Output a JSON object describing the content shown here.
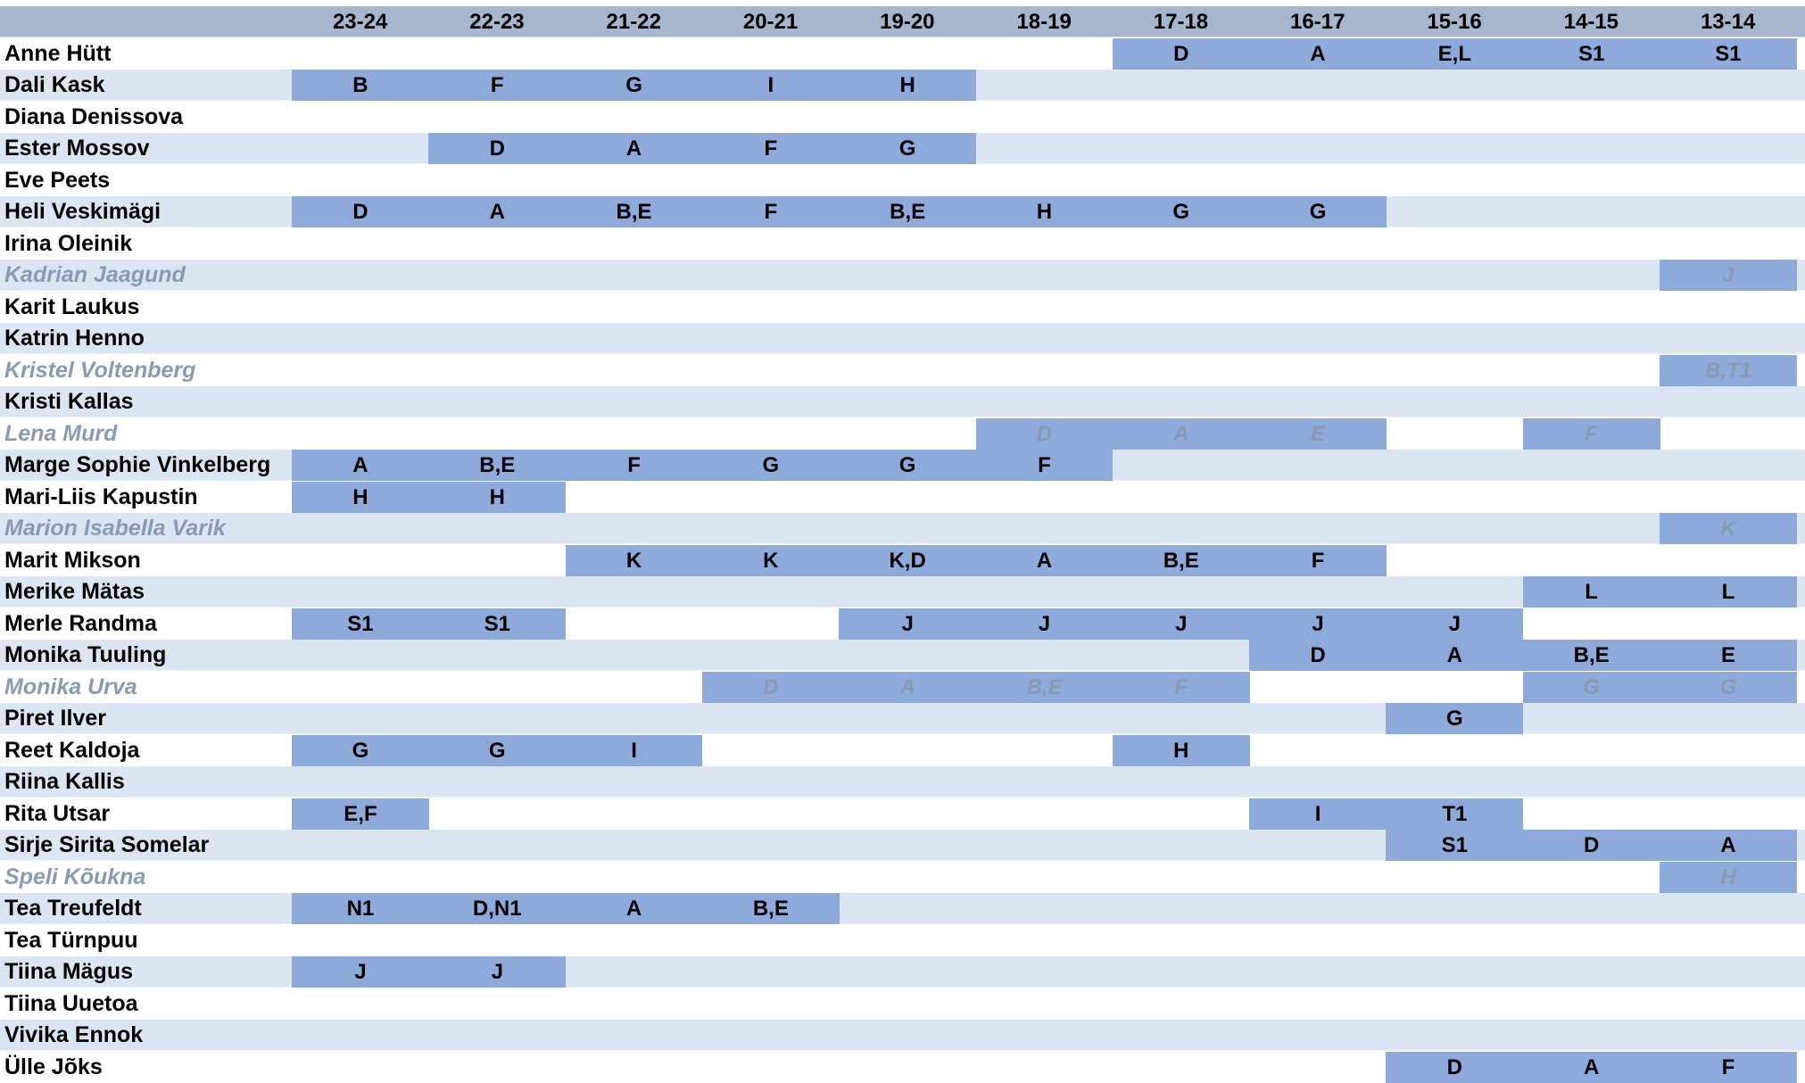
{
  "seasons": [
    "23-24",
    "22-23",
    "21-22",
    "20-21",
    "19-20",
    "18-19",
    "17-18",
    "16-17",
    "15-16",
    "14-15",
    "13-14"
  ],
  "colors": {
    "header_bg": "#a6b6cc",
    "row_odd": "#ffffff",
    "row_even": "#dce6f2",
    "filled": "#8eaadb",
    "alumni_text": "#8a9ab3"
  },
  "rows": [
    {
      "name": "Anne Hütt",
      "alumni": false,
      "cells": [
        "",
        "",
        "",
        "",
        "",
        "",
        "D",
        "A",
        "E,L",
        "S1",
        "S1"
      ]
    },
    {
      "name": "Dali Kask",
      "alumni": false,
      "cells": [
        "B",
        "F",
        "G",
        "I",
        "H",
        "",
        "",
        "",
        "",
        "",
        ""
      ]
    },
    {
      "name": "Diana Denissova",
      "alumni": false,
      "cells": [
        "",
        "",
        "",
        "",
        "",
        "",
        "",
        "",
        "",
        "",
        ""
      ]
    },
    {
      "name": "Ester Mossov",
      "alumni": false,
      "cells": [
        "",
        "D",
        "A",
        "F",
        "G",
        "",
        "",
        "",
        "",
        "",
        ""
      ]
    },
    {
      "name": "Eve Peets",
      "alumni": false,
      "cells": [
        "",
        "",
        "",
        "",
        "",
        "",
        "",
        "",
        "",
        "",
        ""
      ]
    },
    {
      "name": "Heli Veskimägi",
      "alumni": false,
      "cells": [
        "D",
        "A",
        "B,E",
        "F",
        "B,E",
        "H",
        "G",
        "G",
        "",
        "",
        ""
      ]
    },
    {
      "name": "Irina Oleinik",
      "alumni": false,
      "cells": [
        "",
        "",
        "",
        "",
        "",
        "",
        "",
        "",
        "",
        "",
        ""
      ]
    },
    {
      "name": "Kadrian Jaagund",
      "alumni": true,
      "cells": [
        "",
        "",
        "",
        "",
        "",
        "",
        "",
        "",
        "",
        "",
        "J"
      ]
    },
    {
      "name": "Karit Laukus",
      "alumni": false,
      "cells": [
        "",
        "",
        "",
        "",
        "",
        "",
        "",
        "",
        "",
        "",
        ""
      ]
    },
    {
      "name": "Katrin Henno",
      "alumni": false,
      "cells": [
        "",
        "",
        "",
        "",
        "",
        "",
        "",
        "",
        "",
        "",
        ""
      ]
    },
    {
      "name": "Kristel Voltenberg",
      "alumni": true,
      "cells": [
        "",
        "",
        "",
        "",
        "",
        "",
        "",
        "",
        "",
        "",
        "B,T1"
      ]
    },
    {
      "name": "Kristi Kallas",
      "alumni": false,
      "cells": [
        "",
        "",
        "",
        "",
        "",
        "",
        "",
        "",
        "",
        "",
        ""
      ]
    },
    {
      "name": "Lena Murd",
      "alumni": true,
      "cells": [
        "",
        "",
        "",
        "",
        "",
        "D",
        "A",
        "E",
        "",
        "F",
        ""
      ]
    },
    {
      "name": "Marge Sophie Vinkelberg",
      "alumni": false,
      "cells": [
        "A",
        "B,E",
        "F",
        "G",
        "G",
        "F",
        "",
        "",
        "",
        "",
        ""
      ]
    },
    {
      "name": "Mari-Liis Kapustin",
      "alumni": false,
      "cells": [
        "H",
        "H",
        "",
        "",
        "",
        "",
        "",
        "",
        "",
        "",
        ""
      ]
    },
    {
      "name": "Marion Isabella Varik",
      "alumni": true,
      "cells": [
        "",
        "",
        "",
        "",
        "",
        "",
        "",
        "",
        "",
        "",
        "K"
      ]
    },
    {
      "name": "Marit Mikson",
      "alumni": false,
      "cells": [
        "",
        "",
        "K",
        "K",
        "K,D",
        "A",
        "B,E",
        "F",
        "",
        "",
        ""
      ]
    },
    {
      "name": "Merike Mätas",
      "alumni": false,
      "cells": [
        "",
        "",
        "",
        "",
        "",
        "",
        "",
        "",
        "",
        "L",
        "L"
      ]
    },
    {
      "name": "Merle Randma",
      "alumni": false,
      "cells": [
        "S1",
        "S1",
        "",
        "",
        "J",
        "J",
        "J",
        "J",
        "J",
        "",
        ""
      ]
    },
    {
      "name": "Monika Tuuling",
      "alumni": false,
      "cells": [
        "",
        "",
        "",
        "",
        "",
        "",
        "",
        "D",
        "A",
        "B,E",
        "E"
      ]
    },
    {
      "name": "Monika Urva",
      "alumni": true,
      "cells": [
        "",
        "",
        "",
        "D",
        "A",
        "B,E",
        "F",
        "",
        "",
        "G",
        "G"
      ]
    },
    {
      "name": "Piret Ilver",
      "alumni": false,
      "cells": [
        "",
        "",
        "",
        "",
        "",
        "",
        "",
        "",
        "G",
        "",
        ""
      ]
    },
    {
      "name": "Reet Kaldoja",
      "alumni": false,
      "cells": [
        "G",
        "G",
        "I",
        "",
        "",
        "",
        "H",
        "",
        "",
        "",
        ""
      ]
    },
    {
      "name": "Riina Kallis",
      "alumni": false,
      "cells": [
        "",
        "",
        "",
        "",
        "",
        "",
        "",
        "",
        "",
        "",
        ""
      ]
    },
    {
      "name": "Rita Utsar",
      "alumni": false,
      "cells": [
        "E,F",
        "",
        "",
        "",
        "",
        "",
        "",
        "I",
        "T1",
        "",
        ""
      ]
    },
    {
      "name": "Sirje Sirita Somelar",
      "alumni": false,
      "cells": [
        "",
        "",
        "",
        "",
        "",
        "",
        "",
        "",
        "S1",
        "D",
        "A"
      ]
    },
    {
      "name": "Speli Kõukna",
      "alumni": true,
      "cells": [
        "",
        "",
        "",
        "",
        "",
        "",
        "",
        "",
        "",
        "",
        "H"
      ]
    },
    {
      "name": "Tea Treufeldt",
      "alumni": false,
      "cells": [
        "N1",
        "D,N1",
        "A",
        "B,E",
        "",
        "",
        "",
        "",
        "",
        "",
        ""
      ]
    },
    {
      "name": "Tea Türnpuu",
      "alumni": false,
      "cells": [
        "",
        "",
        "",
        "",
        "",
        "",
        "",
        "",
        "",
        "",
        ""
      ]
    },
    {
      "name": "Tiina Mägus",
      "alumni": false,
      "cells": [
        "J",
        "J",
        "",
        "",
        "",
        "",
        "",
        "",
        "",
        "",
        ""
      ]
    },
    {
      "name": "Tiina Uuetoa",
      "alumni": false,
      "cells": [
        "",
        "",
        "",
        "",
        "",
        "",
        "",
        "",
        "",
        "",
        ""
      ]
    },
    {
      "name": "Vivika Ennok",
      "alumni": false,
      "cells": [
        "",
        "",
        "",
        "",
        "",
        "",
        "",
        "",
        "",
        "",
        ""
      ]
    },
    {
      "name": "Ülle Jõks",
      "alumni": false,
      "cells": [
        "",
        "",
        "",
        "",
        "",
        "",
        "",
        "",
        "D",
        "A",
        "F"
      ]
    }
  ]
}
